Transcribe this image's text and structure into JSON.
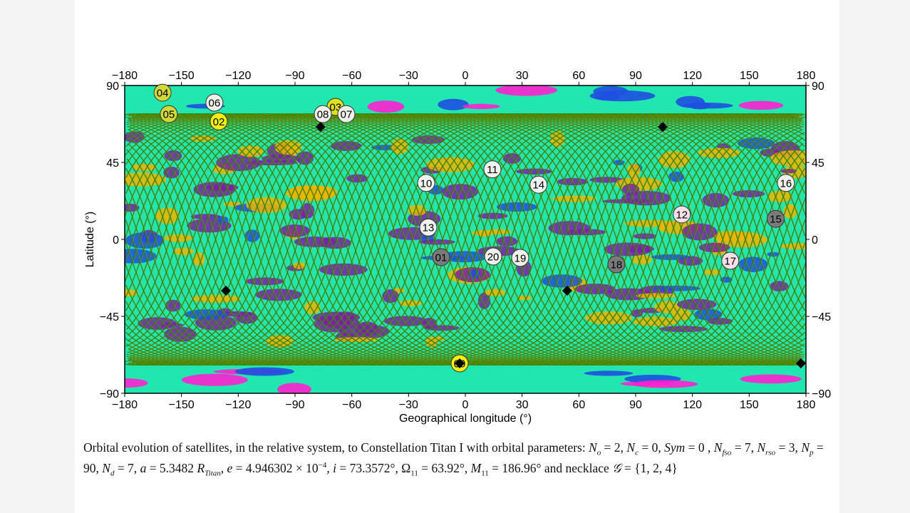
{
  "chart_data": {
    "type": "scatter",
    "xlabel": "Geographical longitude (°)",
    "ylabel": "Latitude (°)",
    "xlim": [
      -180,
      180
    ],
    "ylim": [
      -90,
      90
    ],
    "xticks": [
      "−180",
      "−150",
      "−120",
      "−90",
      "−60",
      "−30",
      "0",
      "30",
      "60",
      "90",
      "120",
      "150",
      "180"
    ],
    "yticks": [
      "90",
      "45",
      "0",
      "−45",
      "−90"
    ],
    "ground_track": {
      "inclination_deg": 73.3572,
      "tracks": 90,
      "color": "#2e7d0a"
    },
    "surface_colors": {
      "base": "#22e6b0",
      "patches": [
        "#7a1fa8",
        "#f0b400",
        "#1f4fe0",
        "#ff1fd0"
      ]
    },
    "satellites": [
      {
        "label": "01",
        "lon": -12.8,
        "lat": -10.4,
        "color": "#7a7a7a"
      },
      {
        "label": "02",
        "lon": -130.3,
        "lat": 69.0,
        "color": "#f2ee10"
      },
      {
        "label": "03",
        "lon": -68.6,
        "lat": 77.5,
        "color": "#e0e020"
      },
      {
        "label": "04",
        "lon": -160.0,
        "lat": 85.8,
        "color": "#d0d83a"
      },
      {
        "label": "05",
        "lon": -156.7,
        "lat": 73.3,
        "color": "#d0d83a"
      },
      {
        "label": "06",
        "lon": -132.6,
        "lat": 80.0,
        "color": "#f0f0ea"
      },
      {
        "label": "07",
        "lon": -62.9,
        "lat": 73.3,
        "color": "#f0f0ea"
      },
      {
        "label": "08",
        "lon": -75.3,
        "lat": 73.3,
        "color": "#f0f0ea"
      },
      {
        "label": "09",
        "lon": -3.0,
        "lat": -72.5,
        "color": "#f2ee10"
      },
      {
        "label": "10",
        "lon": -20.7,
        "lat": 33.0,
        "color": "#eef3ee"
      },
      {
        "label": "11",
        "lon": 14.3,
        "lat": 41.0,
        "color": "#eef3ee"
      },
      {
        "label": "12",
        "lon": 114.4,
        "lat": 14.6,
        "color": "#f6dfe8"
      },
      {
        "label": "13",
        "lon": -19.6,
        "lat": 7.0,
        "color": "#eef3ee"
      },
      {
        "label": "14",
        "lon": 38.7,
        "lat": 32.0,
        "color": "#eef3ee"
      },
      {
        "label": "15",
        "lon": 164.0,
        "lat": 12.0,
        "color": "#7a7a7a"
      },
      {
        "label": "16",
        "lon": 169.4,
        "lat": 33.0,
        "color": "#f0f0ea"
      },
      {
        "label": "17",
        "lon": 140.0,
        "lat": -12.5,
        "color": "#f6dfe8"
      },
      {
        "label": "18",
        "lon": 79.8,
        "lat": -14.6,
        "color": "#7a7a7a"
      },
      {
        "label": "19",
        "lon": 29.0,
        "lat": -10.8,
        "color": "#f0f0ea"
      },
      {
        "label": "20",
        "lon": 14.7,
        "lat": -10.0,
        "color": "#f0f0ea"
      }
    ],
    "diamond_markers": [
      {
        "lon": -76.5,
        "lat": 65.8
      },
      {
        "lon": 104.3,
        "lat": 65.8
      },
      {
        "lon": -126.5,
        "lat": -30.0
      },
      {
        "lon": 53.8,
        "lat": -30.0
      },
      {
        "lon": -3.0,
        "lat": -72.5
      },
      {
        "lon": 177.3,
        "lat": -72.5
      }
    ]
  },
  "caption": {
    "segments": [
      {
        "t": "Orbital evolution of satellites, in the relative system, to Constellation Titan I with orbital parameters: "
      },
      {
        "t": "N",
        "i": true
      },
      {
        "t": "o",
        "sub": true,
        "i": true
      },
      {
        "t": " = 2, "
      },
      {
        "t": "N",
        "i": true
      },
      {
        "t": "c",
        "sub": true,
        "i": true
      },
      {
        "t": " = 0, "
      },
      {
        "t": "Sym",
        "i": true
      },
      {
        "t": " = 0 , "
      },
      {
        "t": "N",
        "i": true
      },
      {
        "t": "fso",
        "sub": true,
        "i": true
      },
      {
        "t": " = 7, "
      },
      {
        "t": "N",
        "i": true
      },
      {
        "t": "rso",
        "sub": true,
        "i": true
      },
      {
        "t": " = 3, "
      },
      {
        "t": "N",
        "i": true
      },
      {
        "t": "p",
        "sub": true,
        "i": true
      },
      {
        "t": " = 90, "
      },
      {
        "t": "N",
        "i": true
      },
      {
        "t": "d",
        "sub": true,
        "i": true
      },
      {
        "t": " = 7, "
      },
      {
        "t": "a",
        "i": true
      },
      {
        "t": " = 5.3482 "
      },
      {
        "t": "R",
        "i": true
      },
      {
        "t": "Titan",
        "sub": true,
        "i": true
      },
      {
        "t": ", "
      },
      {
        "t": "e",
        "i": true
      },
      {
        "t": " = 4.946302 × 10"
      },
      {
        "t": "−4",
        "sup": true
      },
      {
        "t": ", "
      },
      {
        "t": "i",
        "i": true
      },
      {
        "t": " = 73.3572°, Ω"
      },
      {
        "t": "11",
        "sub": true
      },
      {
        "t": " = 63.92°, "
      },
      {
        "t": "M",
        "i": true
      },
      {
        "t": "11",
        "sub": true
      },
      {
        "t": " = 186.96° and necklace "
      },
      {
        "t": "𝒢",
        "i": true
      },
      {
        "t": " = {1, 2, 4}"
      }
    ]
  }
}
